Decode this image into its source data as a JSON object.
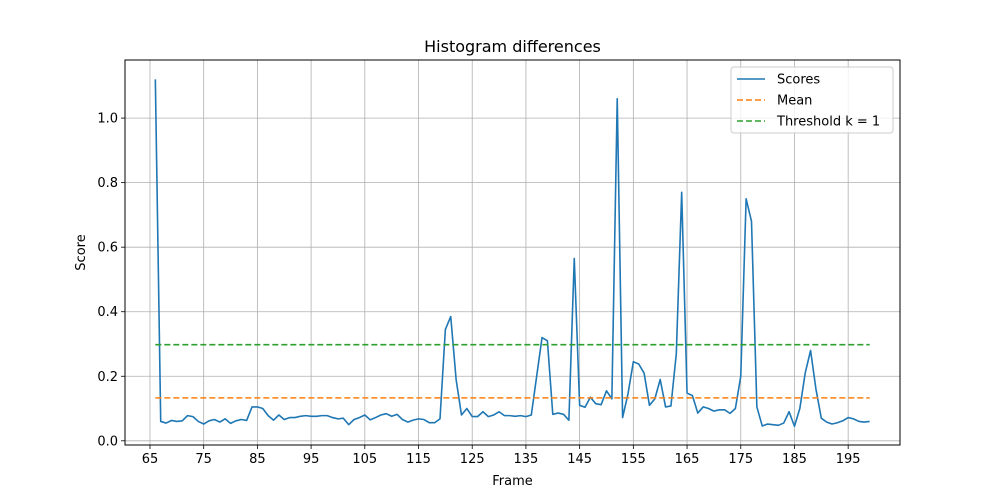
{
  "chart_data": {
    "type": "line",
    "title": "Histogram differences",
    "xlabel": "Frame",
    "ylabel": "Score",
    "xlim": [
      60.35,
      204.65
    ],
    "ylim": [
      -0.013,
      1.18
    ],
    "xticks": [
      65,
      75,
      85,
      95,
      105,
      115,
      125,
      135,
      145,
      155,
      165,
      175,
      185,
      195
    ],
    "yticks": [
      0.0,
      0.2,
      0.4,
      0.6,
      0.8,
      1.0
    ],
    "xtick_labels": [
      "65",
      "75",
      "85",
      "95",
      "105",
      "115",
      "125",
      "135",
      "145",
      "155",
      "165",
      "175",
      "185",
      "195"
    ],
    "ytick_labels": [
      "0.0",
      "0.2",
      "0.4",
      "0.6",
      "0.8",
      "1.0"
    ],
    "grid": true,
    "legend_position": "upper right",
    "series": [
      {
        "name": "Scores",
        "style": "solid",
        "color": "#1f77b4",
        "x": [
          66,
          67,
          68,
          69,
          70,
          71,
          72,
          73,
          74,
          75,
          76,
          77,
          78,
          79,
          80,
          81,
          82,
          83,
          84,
          85,
          86,
          87,
          88,
          89,
          90,
          91,
          92,
          93,
          94,
          95,
          96,
          97,
          98,
          99,
          100,
          101,
          102,
          103,
          104,
          105,
          106,
          107,
          108,
          109,
          110,
          111,
          112,
          113,
          114,
          115,
          116,
          117,
          118,
          119,
          120,
          121,
          122,
          123,
          124,
          125,
          126,
          127,
          128,
          129,
          130,
          131,
          132,
          133,
          134,
          135,
          136,
          137,
          138,
          139,
          140,
          141,
          142,
          143,
          144,
          145,
          146,
          147,
          148,
          149,
          150,
          151,
          152,
          153,
          154,
          155,
          156,
          157,
          158,
          159,
          160,
          161,
          162,
          163,
          164,
          165,
          166,
          167,
          168,
          169,
          170,
          171,
          172,
          173,
          174,
          175,
          176,
          177,
          178,
          179,
          180,
          181,
          182,
          183,
          184,
          185,
          186,
          187,
          188,
          189,
          190,
          191,
          192,
          193,
          194,
          195,
          196,
          197,
          198,
          199
        ],
        "values": [
          1.12,
          0.06,
          0.055,
          0.063,
          0.06,
          0.062,
          0.078,
          0.075,
          0.06,
          0.052,
          0.062,
          0.066,
          0.058,
          0.068,
          0.054,
          0.062,
          0.066,
          0.063,
          0.105,
          0.105,
          0.1,
          0.078,
          0.064,
          0.08,
          0.066,
          0.072,
          0.072,
          0.076,
          0.078,
          0.076,
          0.076,
          0.078,
          0.078,
          0.072,
          0.068,
          0.07,
          0.05,
          0.066,
          0.072,
          0.08,
          0.065,
          0.072,
          0.08,
          0.084,
          0.076,
          0.082,
          0.066,
          0.058,
          0.064,
          0.068,
          0.066,
          0.056,
          0.056,
          0.068,
          0.345,
          0.385,
          0.19,
          0.08,
          0.1,
          0.075,
          0.075,
          0.09,
          0.075,
          0.08,
          0.09,
          0.078,
          0.078,
          0.076,
          0.078,
          0.075,
          0.08,
          0.2,
          0.32,
          0.31,
          0.082,
          0.086,
          0.082,
          0.064,
          0.565,
          0.11,
          0.104,
          0.135,
          0.115,
          0.112,
          0.155,
          0.13,
          1.06,
          0.072,
          0.145,
          0.245,
          0.238,
          0.21,
          0.11,
          0.13,
          0.19,
          0.105,
          0.108,
          0.27,
          0.77,
          0.148,
          0.14,
          0.086,
          0.105,
          0.1,
          0.092,
          0.096,
          0.096,
          0.085,
          0.1,
          0.2,
          0.75,
          0.68,
          0.105,
          0.046,
          0.052,
          0.05,
          0.048,
          0.055,
          0.09,
          0.045,
          0.1,
          0.21,
          0.28,
          0.16,
          0.07,
          0.058,
          0.052,
          0.056,
          0.062,
          0.072,
          0.068,
          0.06,
          0.058,
          0.06
        ]
      },
      {
        "name": "Mean",
        "style": "dashed",
        "color": "#ff7f0e",
        "x": [
          66,
          199
        ],
        "values": [
          0.133,
          0.133
        ]
      },
      {
        "name": "Threshold k = 1",
        "style": "dashed",
        "color": "#2ca02c",
        "x": [
          66,
          199
        ],
        "values": [
          0.298,
          0.298
        ]
      }
    ]
  }
}
